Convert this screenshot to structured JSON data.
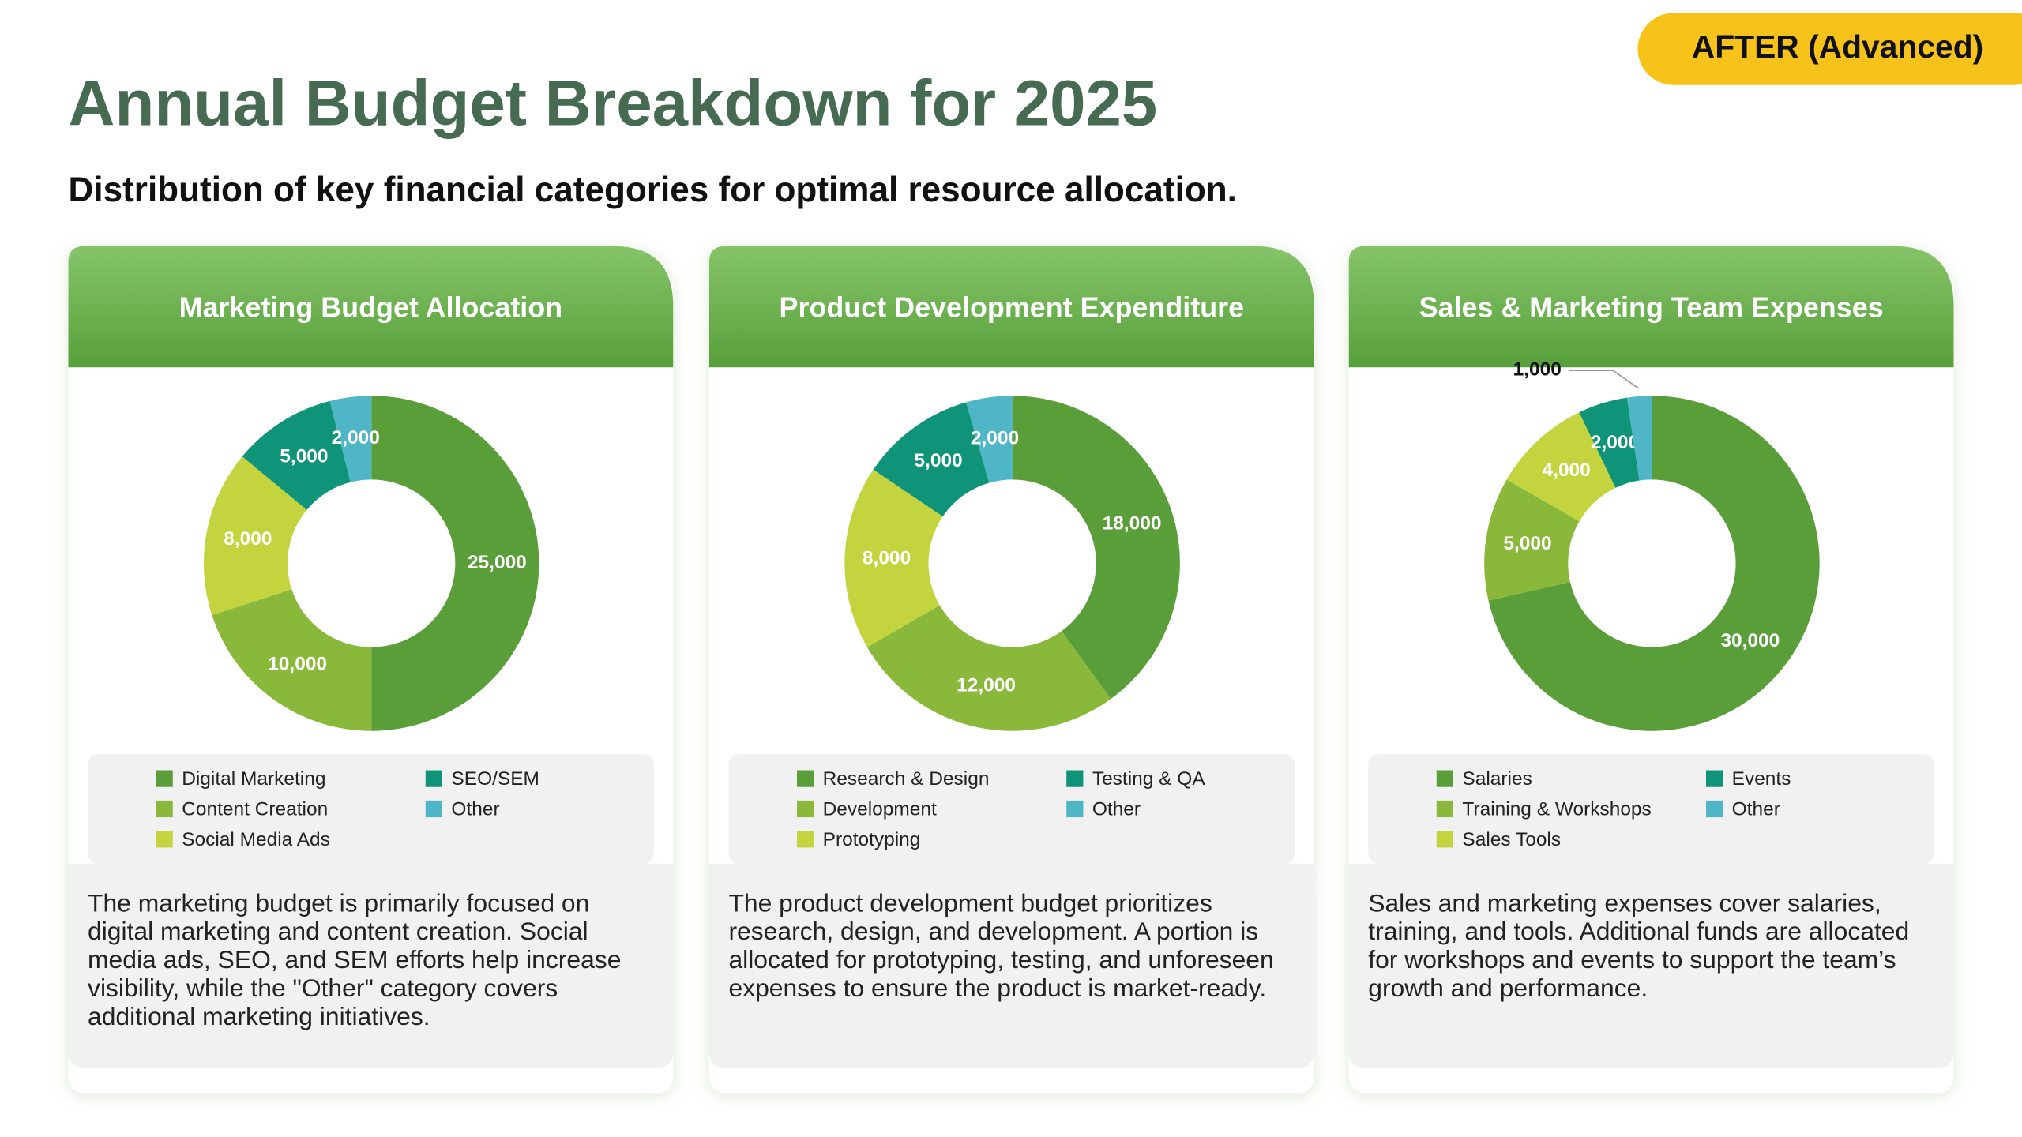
{
  "badge": "AFTER (Advanced)",
  "title": "Annual Budget Breakdown for 2025",
  "subtitle": "Distribution of key financial categories for optimal resource allocation.",
  "chart_data": [
    {
      "type": "donut",
      "title": "Marketing Budget Allocation",
      "categories": [
        "Digital Marketing",
        "Content Creation",
        "Social Media Ads",
        "SEO/SEM",
        "Other"
      ],
      "values": [
        25000,
        10000,
        8000,
        5000,
        2000
      ],
      "value_labels": [
        "25,000",
        "10,000",
        "8,000",
        "5,000",
        "2,000"
      ],
      "colors": [
        "#5a9e3a",
        "#8ab83a",
        "#c3d43f",
        "#0f9479",
        "#4fb6c8"
      ],
      "caption": "The marketing budget is primarily focused on digital marketing and content creation. Social media ads, SEO, and SEM efforts help increase visibility, while the \"Other\" category covers additional marketing initiatives."
    },
    {
      "type": "donut",
      "title": "Product Development Expenditure",
      "categories": [
        "Research & Design",
        "Development",
        "Prototyping",
        "Testing & QA",
        "Other"
      ],
      "values": [
        18000,
        12000,
        8000,
        5000,
        2000
      ],
      "value_labels": [
        "18,000",
        "12,000",
        "8,000",
        "5,000",
        "2,000"
      ],
      "colors": [
        "#5a9e3a",
        "#8ab83a",
        "#c3d43f",
        "#0f9479",
        "#4fb6c8"
      ],
      "caption": "The product development budget prioritizes research, design, and development. A portion is allocated for prototyping, testing, and unforeseen expenses to ensure the product is market-ready."
    },
    {
      "type": "donut",
      "title": "Sales & Marketing Team Expenses",
      "categories": [
        "Salaries",
        "Training & Workshops",
        "Sales Tools",
        "Events",
        "Other"
      ],
      "values": [
        30000,
        5000,
        4000,
        2000,
        1000
      ],
      "value_labels": [
        "30,000",
        "5,000",
        "4,000",
        "2,000",
        "1,000"
      ],
      "colors": [
        "#5a9e3a",
        "#8ab83a",
        "#c3d43f",
        "#0f9479",
        "#4fb6c8"
      ],
      "caption": "Sales and marketing expenses cover salaries, training, and tools. Additional funds are allocated for workshops and events to support the team’s growth and performance."
    }
  ]
}
